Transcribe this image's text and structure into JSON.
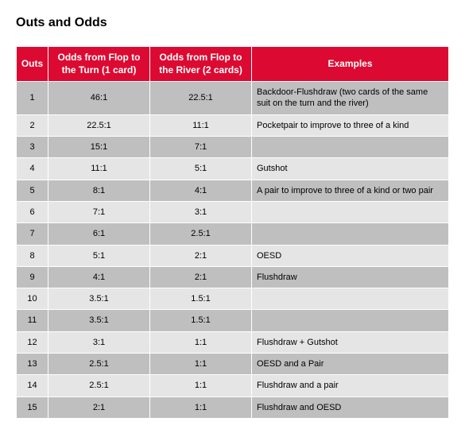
{
  "title": "Outs and Odds",
  "table": {
    "columns": [
      "Outs",
      "Odds from Flop\nto the Turn (1 card)",
      "Odds from Flop\nto the River (2 cards)",
      "Examples"
    ],
    "col_align": [
      "center",
      "center",
      "center",
      "left"
    ],
    "header_bg": "#dc0a32",
    "header_fg": "#ffffff",
    "row_bg_odd": "#bfbfbf",
    "row_bg_even": "#e5e5e5",
    "border_color": "#ffffff",
    "font_size_header": 12,
    "font_size_body": 11,
    "rows": [
      [
        "1",
        "46:1",
        "22.5:1",
        "Backdoor-Flushdraw (two cards of the same suit on the turn and the river)"
      ],
      [
        "2",
        "22.5:1",
        "11:1",
        "Pocketpair to improve to three of a kind"
      ],
      [
        "3",
        "15:1",
        "7:1",
        ""
      ],
      [
        "4",
        "11:1",
        "5:1",
        "Gutshot"
      ],
      [
        "5",
        "8:1",
        "4:1",
        "A pair to improve to three of a kind or two pair"
      ],
      [
        "6",
        "7:1",
        "3:1",
        ""
      ],
      [
        "7",
        "6:1",
        "2.5:1",
        ""
      ],
      [
        "8",
        "5:1",
        "2:1",
        "OESD"
      ],
      [
        "9",
        "4:1",
        "2:1",
        "Flushdraw"
      ],
      [
        "10",
        "3.5:1",
        "1.5:1",
        ""
      ],
      [
        "11",
        "3.5:1",
        "1.5:1",
        ""
      ],
      [
        "12",
        "3:1",
        "1:1",
        "Flushdraw + Gutshot"
      ],
      [
        "13",
        "2.5:1",
        "1:1",
        "OESD and a Pair"
      ],
      [
        "14",
        "2.5:1",
        "1:1",
        "Flushdraw and a pair"
      ],
      [
        "15",
        "2:1",
        "1:1",
        "Flushdraw and OESD"
      ]
    ]
  }
}
